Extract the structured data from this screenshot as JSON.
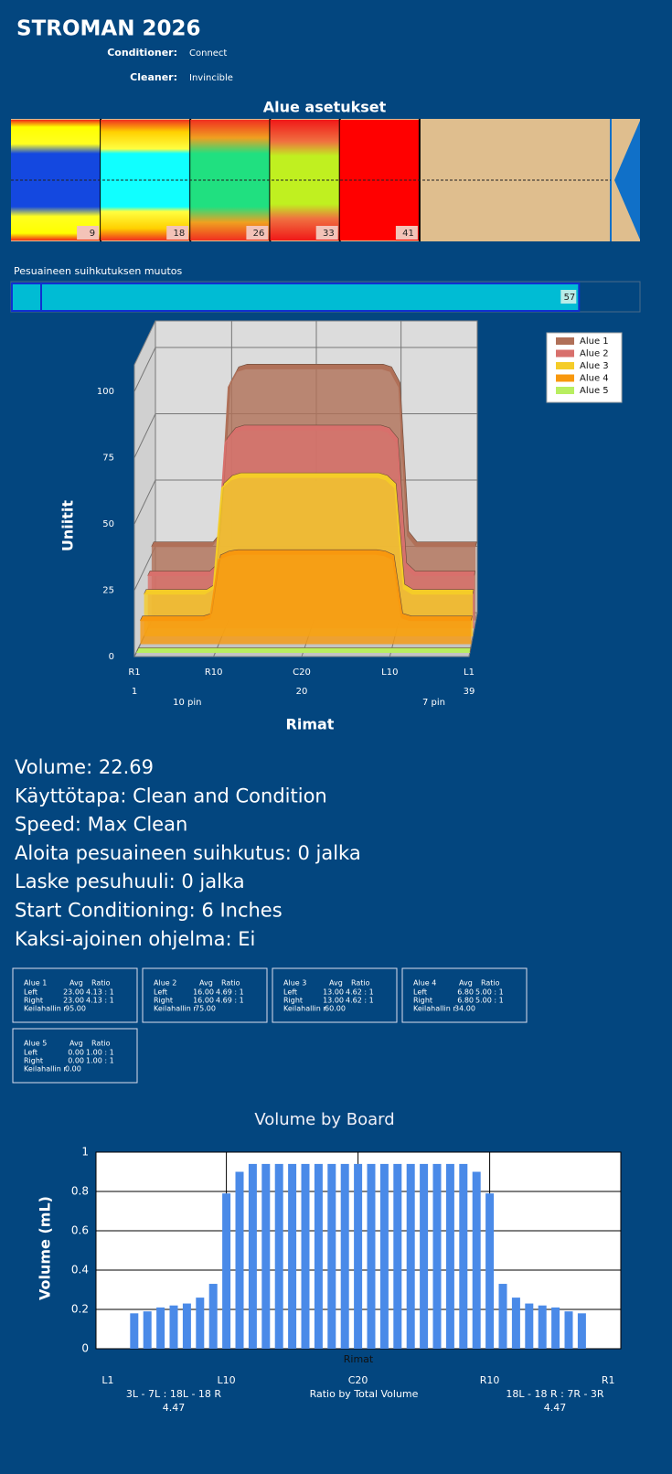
{
  "header": {
    "title": "STROMAN 2026",
    "fields": [
      {
        "label": "Conditioner:",
        "value": "Connect"
      },
      {
        "label": "Cleaner:",
        "value": "Invincible"
      }
    ]
  },
  "zones": {
    "title": "Alue asetukset",
    "markers": [
      9,
      18,
      26,
      33,
      41
    ]
  },
  "spray": {
    "label": "Pesuaineen suihkutuksen muutos",
    "value": 57
  },
  "chart_data": [
    {
      "type": "area3d",
      "ylabel": "Uniitit",
      "xlabel": "Rimat",
      "x": [
        1,
        2,
        3,
        4,
        5,
        6,
        7,
        8,
        9,
        10,
        11,
        12,
        13,
        14,
        15,
        16,
        17,
        18,
        19,
        20,
        21,
        22,
        23,
        24,
        25,
        26,
        27,
        28,
        29,
        30,
        31,
        32,
        33,
        34,
        35,
        36,
        37,
        38,
        39
      ],
      "xlim": [
        1,
        39
      ],
      "ylim": [
        0,
        110
      ],
      "yticks": [
        0,
        25,
        50,
        75,
        100
      ],
      "xticks": [
        {
          "value": 1,
          "label": "R1"
        },
        {
          "value": 10,
          "label": "R10"
        },
        {
          "value": 20,
          "label": "C20"
        },
        {
          "value": 30,
          "label": "L10"
        },
        {
          "value": 39,
          "label": "L1"
        }
      ],
      "xticks_secondary": [
        1,
        20,
        39
      ],
      "annotations": [
        {
          "text": "10 pin",
          "x": 7
        },
        {
          "text": "7 pin",
          "x": 35
        }
      ],
      "legend": "top-right",
      "grid": true,
      "series": [
        {
          "name": "Alue 1",
          "color": "#b07058",
          "values": [
            28,
            28,
            28,
            28,
            28,
            28,
            28,
            28,
            32,
            88,
            94,
            95,
            95,
            95,
            95,
            95,
            95,
            95,
            95,
            95,
            95,
            95,
            95,
            95,
            95,
            95,
            95,
            95,
            94,
            88,
            32,
            28,
            28,
            28,
            28,
            28,
            28,
            28,
            28
          ]
        },
        {
          "name": "Alue 2",
          "color": "#d8706c",
          "values": [
            20,
            20,
            20,
            20,
            20,
            20,
            20,
            20,
            23,
            70,
            74,
            75,
            75,
            75,
            75,
            75,
            75,
            75,
            75,
            75,
            75,
            75,
            75,
            75,
            75,
            75,
            75,
            75,
            74,
            70,
            23,
            20,
            20,
            20,
            20,
            20,
            20,
            20,
            20
          ]
        },
        {
          "name": "Alue 3",
          "color": "#f5cc28",
          "values": [
            16,
            16,
            16,
            16,
            16,
            16,
            16,
            16,
            18,
            56,
            59,
            60,
            60,
            60,
            60,
            60,
            60,
            60,
            60,
            60,
            60,
            60,
            60,
            60,
            60,
            60,
            60,
            60,
            59,
            56,
            18,
            16,
            16,
            16,
            16,
            16,
            16,
            16,
            16
          ]
        },
        {
          "name": "Alue 4",
          "color": "#f8980e",
          "values": [
            9,
            9,
            9,
            9,
            9,
            9,
            9,
            9,
            10,
            32,
            33.5,
            34,
            34,
            34,
            34,
            34,
            34,
            34,
            34,
            34,
            34,
            34,
            34,
            34,
            34,
            34,
            34,
            34,
            33.5,
            32,
            10,
            9,
            9,
            9,
            9,
            9,
            9,
            9,
            9
          ]
        },
        {
          "name": "Alue 5",
          "color": "#b8ee60",
          "values": [
            0,
            0,
            0,
            0,
            0,
            0,
            0,
            0,
            0,
            0,
            0,
            0,
            0,
            0,
            0,
            0,
            0,
            0,
            0,
            0,
            0,
            0,
            0,
            0,
            0,
            0,
            0,
            0,
            0,
            0,
            0,
            0,
            0,
            0,
            0,
            0,
            0,
            0,
            0
          ]
        }
      ]
    },
    {
      "type": "bar",
      "title": "Volume by Board",
      "ylabel": "Volume (mL)",
      "xlabel": "Rimat",
      "color": "#4a8ae8",
      "categories": [
        "L1",
        null,
        null,
        null,
        null,
        null,
        null,
        null,
        null,
        "L10",
        null,
        null,
        null,
        null,
        null,
        null,
        null,
        null,
        null,
        "C20",
        null,
        null,
        null,
        null,
        null,
        null,
        null,
        null,
        null,
        "R10",
        null,
        null,
        null,
        null,
        null,
        null,
        null,
        null,
        "R1"
      ],
      "values": [
        0,
        0,
        0.18,
        0.19,
        0.21,
        0.22,
        0.23,
        0.26,
        0.33,
        0.79,
        0.9,
        0.94,
        0.94,
        0.94,
        0.94,
        0.94,
        0.94,
        0.94,
        0.94,
        0.94,
        0.94,
        0.94,
        0.94,
        0.94,
        0.94,
        0.94,
        0.94,
        0.94,
        0.9,
        0.79,
        0.33,
        0.26,
        0.23,
        0.22,
        0.21,
        0.19,
        0.18,
        0,
        0
      ],
      "ylim": [
        0,
        1
      ],
      "yticks": [
        0,
        0.2,
        0.4,
        0.6,
        0.8,
        1
      ],
      "grid": true,
      "footer": {
        "left": [
          "3L - 7L : 18L - 18 R",
          "4.47"
        ],
        "center": "Ratio by Total Volume",
        "right": [
          "18L - 18 R : 7R - 3R",
          "4.47"
        ]
      }
    }
  ],
  "info": [
    "Volume: 22.69",
    "Käyttötapa: Clean and Condition",
    "Speed: Max Clean",
    "Aloita pesuaineen suihkutus: 0 jalka",
    "Laske pesuhuuli: 0 jalka",
    "Start Conditioning: 6 Inches",
    "Kaksi-ajoinen ohjelma: Ei"
  ],
  "zone_tables": [
    {
      "title": "Alue 1",
      "columns": [
        "Avg",
        "Ratio"
      ],
      "rows": [
        [
          "Left",
          "23.00",
          "4.13 : 1"
        ],
        [
          "Right",
          "23.00",
          "4.13 : 1"
        ],
        [
          "Keilahallin r",
          "95.00"
        ]
      ]
    },
    {
      "title": "Alue 2",
      "columns": [
        "Avg",
        "Ratio"
      ],
      "rows": [
        [
          "Left",
          "16.00",
          "4.69 : 1"
        ],
        [
          "Right",
          "16.00",
          "4.69 : 1"
        ],
        [
          "Keilahallin r",
          "75.00"
        ]
      ]
    },
    {
      "title": "Alue 3",
      "columns": [
        "Avg",
        "Ratio"
      ],
      "rows": [
        [
          "Left",
          "13.00",
          "4.62 : 1"
        ],
        [
          "Right",
          "13.00",
          "4.62 : 1"
        ],
        [
          "Keilahallin r",
          "60.00"
        ]
      ]
    },
    {
      "title": "Alue 4",
      "columns": [
        "Avg",
        "Ratio"
      ],
      "rows": [
        [
          "Left",
          "6.80",
          "5.00 : 1"
        ],
        [
          "Right",
          "6.80",
          "5.00 : 1"
        ],
        [
          "Keilahallin r",
          "34.00"
        ]
      ]
    },
    {
      "title": "Alue 5",
      "columns": [
        "Avg",
        "Ratio"
      ],
      "rows": [
        [
          "Left",
          "0.00",
          "1.00 : 1"
        ],
        [
          "Right",
          "0.00",
          "1.00 : 1"
        ],
        [
          "Keilahallin r",
          "0.00"
        ]
      ]
    }
  ]
}
